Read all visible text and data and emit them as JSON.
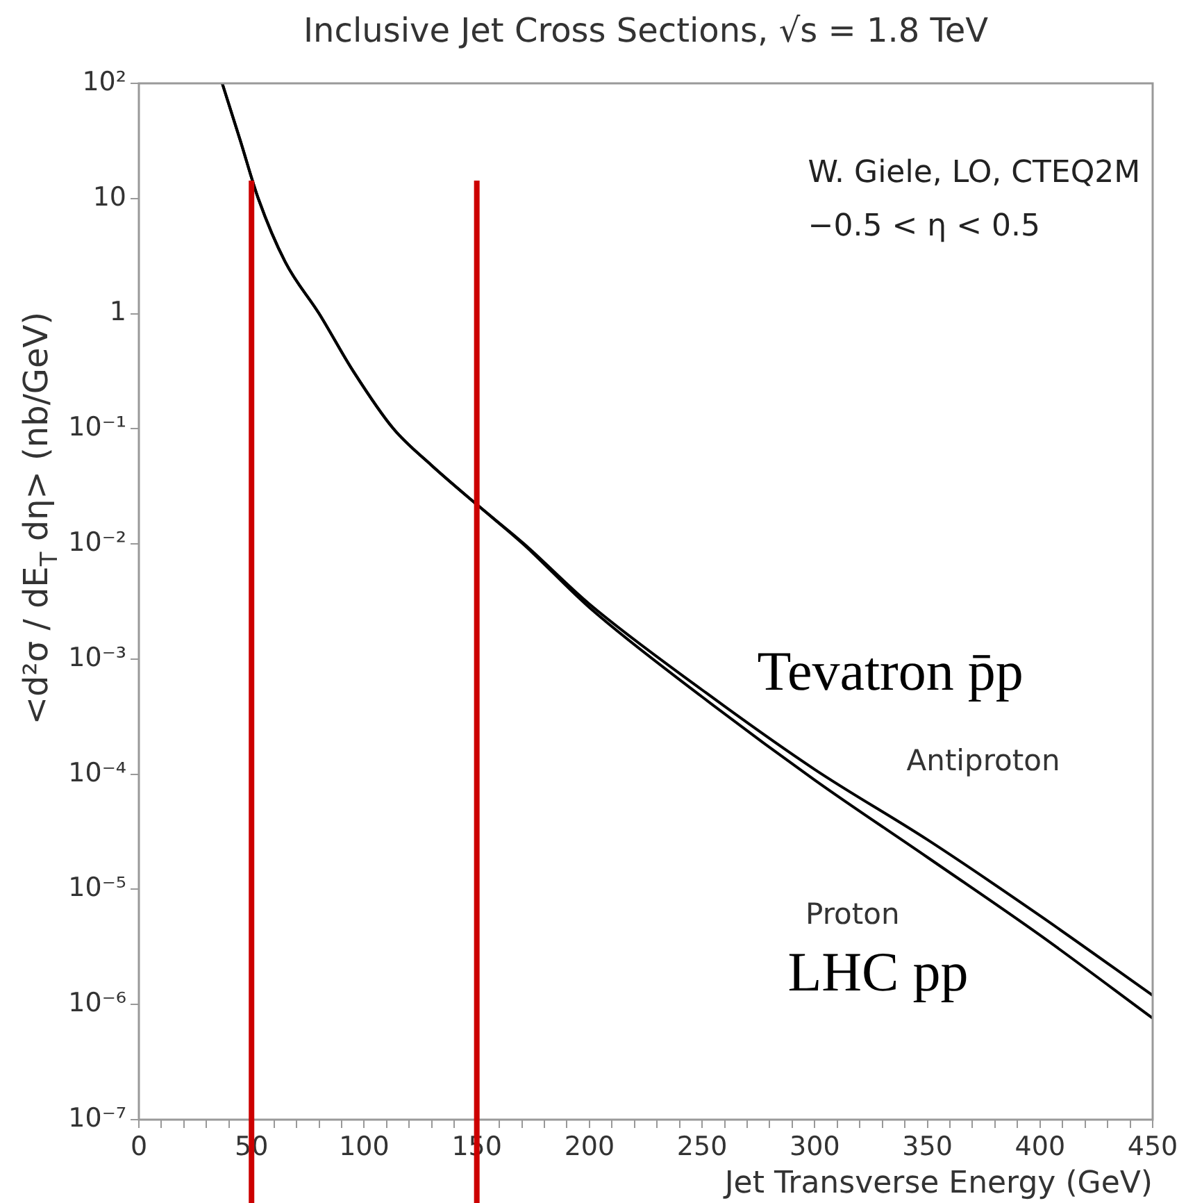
{
  "chart_data": {
    "type": "line",
    "title": "Inclusive Jet Cross Sections, √s = 1.8 TeV",
    "xlabel": "Jet Transverse Energy (GeV)",
    "ylabel": "<d²σ / dE$_{T}$ dη> (nb/GeV)",
    "x": [
      37,
      45,
      53,
      65,
      80,
      95,
      113,
      130,
      150,
      171,
      200,
      250,
      300,
      350,
      400,
      450
    ],
    "series": [
      {
        "name": "Antiproton",
        "color": "#000000",
        "values": [
          100,
          32,
          10,
          2.8,
          1,
          0.32,
          0.1,
          0.048,
          0.022,
          0.01,
          0.003,
          0.00054,
          0.00011,
          2.7e-05,
          5.9e-06,
          1.2e-06
        ]
      },
      {
        "name": "Proton",
        "color": "#000000",
        "values": [
          100,
          32,
          10,
          2.8,
          1,
          0.32,
          0.1,
          0.048,
          0.022,
          0.0098,
          0.0028,
          0.00047,
          8.9e-05,
          1.9e-05,
          4e-06,
          7.6e-07
        ]
      }
    ],
    "log": "y",
    "xlim": [
      0,
      450
    ],
    "ylim": [
      1e-07,
      100
    ],
    "xticks": [
      0,
      {
        "value": 10,
        "label": null
      },
      {
        "value": 20,
        "label": null
      },
      {
        "value": 30,
        "label": null
      },
      {
        "value": 40,
        "label": null
      },
      50,
      {
        "value": 60,
        "label": null
      },
      {
        "value": 70,
        "label": null
      },
      {
        "value": 80,
        "label": null
      },
      {
        "value": 90,
        "label": null
      },
      100,
      {
        "value": 110,
        "label": null
      },
      {
        "value": 120,
        "label": null
      },
      {
        "value": 130,
        "label": null
      },
      {
        "value": 140,
        "label": null
      },
      150,
      {
        "value": 160,
        "label": null
      },
      {
        "value": 170,
        "label": null
      },
      {
        "value": 180,
        "label": null
      },
      {
        "value": 190,
        "label": null
      },
      200,
      {
        "value": 210,
        "label": null
      },
      {
        "value": 220,
        "label": null
      },
      {
        "value": 230,
        "label": null
      },
      {
        "value": 240,
        "label": null
      },
      250,
      {
        "value": 260,
        "label": null
      },
      {
        "value": 270,
        "label": null
      },
      {
        "value": 280,
        "label": null
      },
      {
        "value": 290,
        "label": null
      },
      300,
      {
        "value": 310,
        "label": null
      },
      {
        "value": 320,
        "label": null
      },
      {
        "value": 330,
        "label": null
      },
      {
        "value": 340,
        "label": null
      },
      350,
      {
        "value": 360,
        "label": null
      },
      {
        "value": 370,
        "label": null
      },
      {
        "value": 380,
        "label": null
      },
      {
        "value": 390,
        "label": null
      },
      400,
      {
        "value": 410,
        "label": null
      },
      {
        "value": 420,
        "label": null
      },
      {
        "value": 430,
        "label": null
      },
      {
        "value": 440,
        "label": null
      },
      450
    ],
    "yticks": [
      {
        "value": 1e-07,
        "label": "10⁻⁷"
      },
      {
        "value": 1e-06,
        "label": "10⁻⁶"
      },
      {
        "value": 1e-05,
        "label": "10⁻⁵"
      },
      {
        "value": 0.0001,
        "label": "10⁻⁴"
      },
      {
        "value": 0.001,
        "label": "10⁻³"
      },
      {
        "value": 0.01,
        "label": "10⁻²"
      },
      {
        "value": 0.1,
        "label": "10⁻¹"
      },
      1,
      10,
      {
        "value": 100,
        "label": "10²"
      }
    ],
    "grid": false,
    "legend": false,
    "marker": "none",
    "line_style": "solid",
    "ref_lines": [
      {
        "axis": "x",
        "value": 50,
        "color": "#cc0000"
      },
      {
        "axis": "x",
        "value": 150,
        "color": "#cc0000"
      }
    ],
    "annotations": [
      "W. Giele, LO, CTEQ2M",
      "−0.5 < η < 0.5",
      "Tevatron p̄p",
      "LHC pp"
    ]
  }
}
